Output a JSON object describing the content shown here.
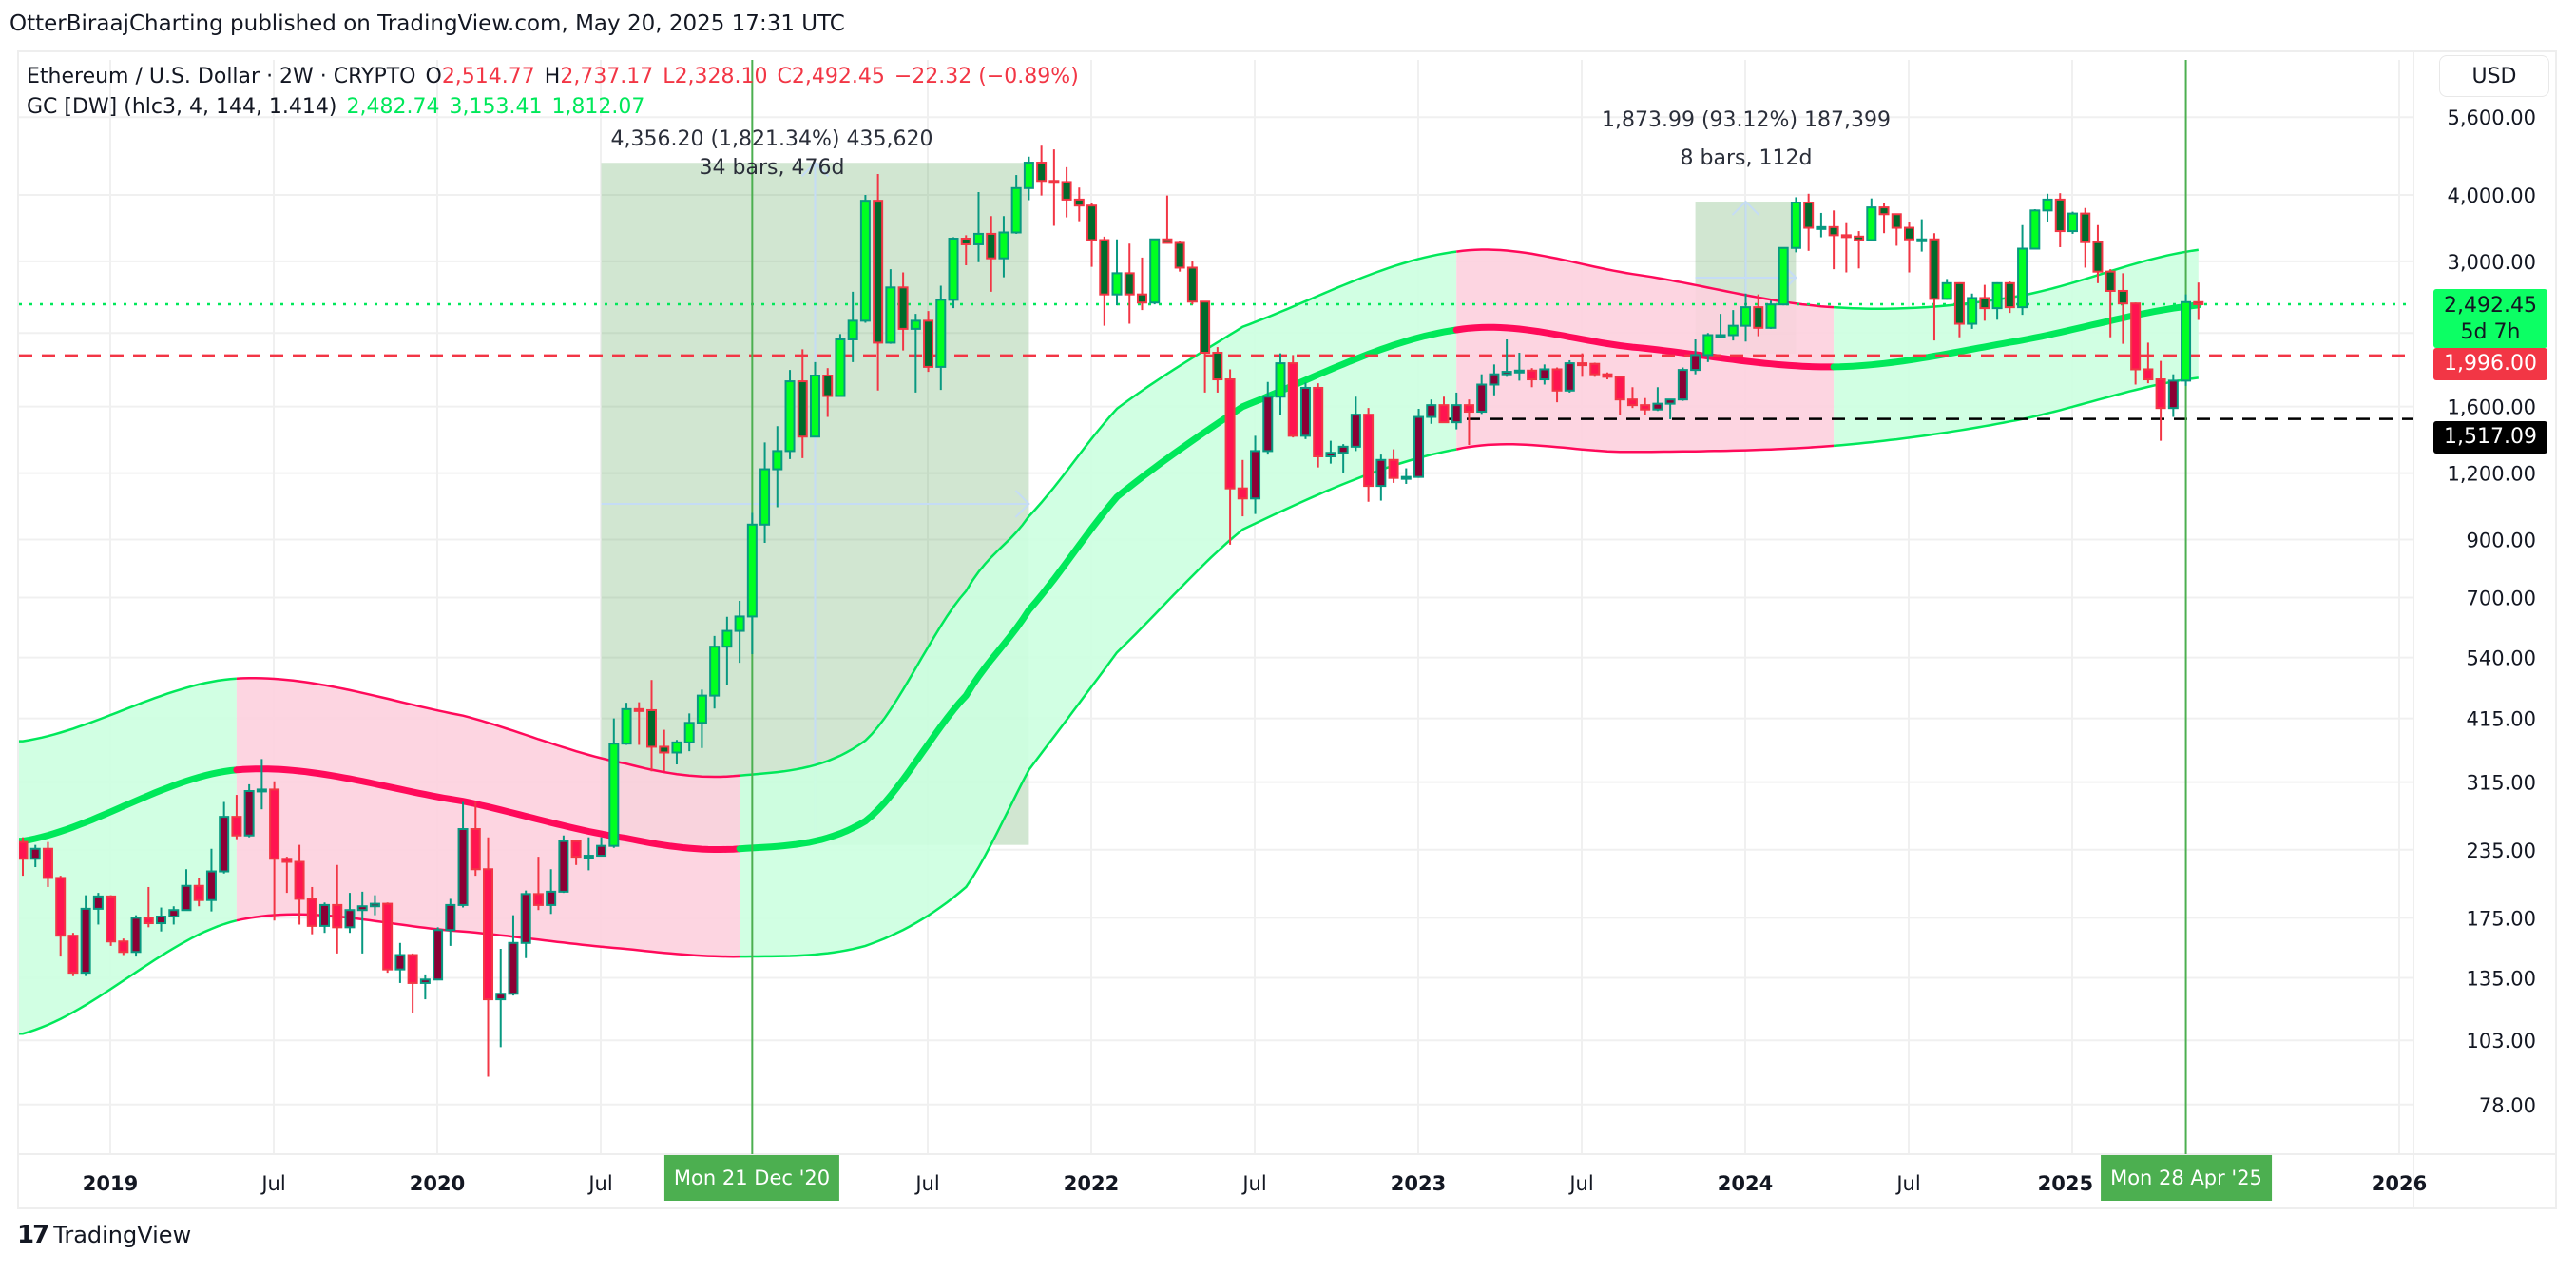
{
  "header": {
    "published": "OtterBiraajCharting published on TradingView.com, May 20, 2025 17:31 UTC"
  },
  "legend": {
    "symbol": "Ethereum / U.S. Dollar · 2W · CRYPTO",
    "open_label": "O",
    "open": "2,514.77",
    "high_label": "H",
    "high": "2,737.17",
    "low_label": "L",
    "low": "2,328.10",
    "close_label": "C",
    "close": "2,492.45",
    "change": "−22.32 (−0.89%)",
    "indicator": "GC [DW] (hlc3, 4, 144, 1.414)",
    "ind_center": "2,482.74",
    "ind_upper": "3,153.41",
    "ind_lower": "1,812.07"
  },
  "measures": [
    {
      "line1": "4,356.20 (1,821.34%) 435,620",
      "line2": "34 bars, 476d"
    },
    {
      "line1": "1,873.99 (93.12%) 187,399",
      "line2": "8 bars, 112d"
    }
  ],
  "price_axis": {
    "currency_button": "USD",
    "last_price": "2,492.45",
    "countdown": "5d 7h",
    "line_red": "1,996.00",
    "line_black": "1,517.09"
  },
  "time_axis": {
    "cursor_dates": [
      "Mon 21 Dec '20",
      "Mon 28 Apr '25"
    ]
  },
  "footer": {
    "logo_text": "TradingView",
    "logo_mark": "17"
  },
  "colors": {
    "up_border": "#089981",
    "down_border": "#f23645",
    "up_above": "#00ff22",
    "down_above": "#006b2c",
    "up_below": "#8b0035",
    "down_below": "#ff1450",
    "band_green": "#00e85a",
    "band_pink": "#ff0a5a",
    "band_green_fill": "#ccffe0",
    "band_pink_fill": "#fdd0de",
    "measure_fill": "#d1e8d1",
    "cursor_line": "#4caf50"
  },
  "chart_data": {
    "type": "candlestick",
    "interval": "2W",
    "y_scale": "log",
    "grid": true,
    "ylim": [
      70,
      6000
    ],
    "y_ticks": [
      {
        "value": 5600,
        "label": "5,600.00"
      },
      {
        "value": 4000,
        "label": "4,000.00"
      },
      {
        "value": 3000,
        "label": "3,000.00"
      },
      {
        "value": 2200,
        "label": ""
      },
      {
        "value": 1600,
        "label": "1,600.00"
      },
      {
        "value": 1200,
        "label": "1,200.00"
      },
      {
        "value": 900,
        "label": "900.00"
      },
      {
        "value": 700,
        "label": "700.00"
      },
      {
        "value": 540,
        "label": "540.00"
      },
      {
        "value": 415,
        "label": "415.00"
      },
      {
        "value": 315,
        "label": "315.00"
      },
      {
        "value": 235,
        "label": "235.00"
      },
      {
        "value": 175,
        "label": "175.00"
      },
      {
        "value": 135,
        "label": "135.00"
      },
      {
        "value": 103,
        "label": "103.00"
      },
      {
        "value": 78,
        "label": "78.00"
      }
    ],
    "x_ticks": [
      {
        "date": 2019.0,
        "label": "2019",
        "year": true
      },
      {
        "date": 2019.5,
        "label": "Jul",
        "year": false
      },
      {
        "date": 2020.0,
        "label": "2020",
        "year": true
      },
      {
        "date": 2020.5,
        "label": "Jul",
        "year": false
      },
      {
        "date": 2021.5,
        "label": "Jul",
        "year": false
      },
      {
        "date": 2022.0,
        "label": "2022",
        "year": true
      },
      {
        "date": 2022.5,
        "label": "Jul",
        "year": false
      },
      {
        "date": 2023.0,
        "label": "2023",
        "year": true
      },
      {
        "date": 2023.5,
        "label": "Jul",
        "year": false
      },
      {
        "date": 2024.0,
        "label": "2024",
        "year": true
      },
      {
        "date": 2024.5,
        "label": "Jul",
        "year": false
      },
      {
        "date": 2025.0,
        "label": "2025",
        "year": true
      },
      {
        "date": 2026.0,
        "label": "2026",
        "year": true
      }
    ],
    "candles_ohlc": [
      [
        243,
        248,
        210,
        226
      ],
      [
        226,
        240,
        218,
        236
      ],
      [
        236,
        243,
        200,
        208
      ],
      [
        208,
        210,
        148,
        162
      ],
      [
        162,
        164,
        136,
        138
      ],
      [
        138,
        193,
        136,
        182
      ],
      [
        182,
        195,
        170,
        192
      ],
      [
        192,
        193,
        155,
        158
      ],
      [
        158,
        160,
        149,
        151
      ],
      [
        151,
        177,
        148,
        175
      ],
      [
        175,
        200,
        168,
        171
      ],
      [
        171,
        183,
        165,
        176
      ],
      [
        176,
        184,
        170,
        181
      ],
      [
        181,
        216,
        181,
        201
      ],
      [
        201,
        208,
        184,
        189
      ],
      [
        189,
        236,
        180,
        214
      ],
      [
        214,
        289,
        212,
        271
      ],
      [
        271,
        298,
        246,
        250
      ],
      [
        250,
        312,
        248,
        303
      ],
      [
        303,
        348,
        280,
        305
      ],
      [
        305,
        316,
        173,
        226
      ],
      [
        226,
        228,
        195,
        223
      ],
      [
        223,
        240,
        170,
        190
      ],
      [
        190,
        200,
        163,
        169
      ],
      [
        169,
        187,
        164,
        185
      ],
      [
        185,
        220,
        150,
        168
      ],
      [
        168,
        195,
        164,
        181
      ],
      [
        181,
        196,
        150,
        184
      ],
      [
        184,
        193,
        177,
        186
      ],
      [
        186,
        187,
        138,
        140
      ],
      [
        140,
        157,
        132,
        149
      ],
      [
        149,
        150,
        116,
        132
      ],
      [
        132,
        137,
        123,
        134
      ],
      [
        134,
        168,
        134,
        166
      ],
      [
        166,
        190,
        155,
        185
      ],
      [
        185,
        289,
        183,
        257
      ],
      [
        257,
        289,
        210,
        216
      ],
      [
        216,
        248,
        88,
        123
      ],
      [
        123,
        153,
        100,
        126
      ],
      [
        126,
        177,
        125,
        157
      ],
      [
        157,
        197,
        147,
        194
      ],
      [
        194,
        228,
        181,
        185
      ],
      [
        185,
        216,
        178,
        196
      ],
      [
        196,
        250,
        195,
        244
      ],
      [
        244,
        245,
        220,
        228
      ],
      [
        228,
        248,
        215,
        229
      ],
      [
        229,
        248,
        229,
        239
      ],
      [
        239,
        415,
        237,
        372
      ],
      [
        372,
        444,
        370,
        432
      ],
      [
        432,
        445,
        370,
        430
      ],
      [
        430,
        490,
        330,
        367
      ],
      [
        367,
        395,
        330,
        358
      ],
      [
        358,
        378,
        340,
        374
      ],
      [
        374,
        424,
        360,
        407
      ],
      [
        407,
        470,
        365,
        458
      ],
      [
        458,
        593,
        433,
        566
      ],
      [
        566,
        644,
        480,
        606
      ],
      [
        606,
        690,
        528,
        645
      ],
      [
        645,
        1010,
        548,
        960
      ],
      [
        960,
        1370,
        887,
        1220
      ],
      [
        1220,
        1470,
        1035,
        1320
      ],
      [
        1320,
        1875,
        1275,
        1785
      ],
      [
        1785,
        2050,
        1280,
        1405
      ],
      [
        1405,
        1940,
        1405,
        1830
      ],
      [
        1830,
        1890,
        1530,
        1675
      ],
      [
        1675,
        2190,
        1670,
        2140
      ],
      [
        2140,
        2630,
        1940,
        2320
      ],
      [
        2320,
        4000,
        2300,
        3900
      ],
      [
        3900,
        4380,
        1715,
        2110
      ],
      [
        2110,
        2900,
        2100,
        2680
      ],
      [
        2680,
        2860,
        2040,
        2240
      ],
      [
        2240,
        2390,
        1700,
        2320
      ],
      [
        2320,
        2420,
        1860,
        1900
      ],
      [
        1900,
        2700,
        1720,
        2540
      ],
      [
        2540,
        3330,
        2450,
        3310
      ],
      [
        3310,
        3360,
        2950,
        3230
      ],
      [
        3230,
        4050,
        2990,
        3380
      ],
      [
        3380,
        3650,
        2630,
        3040
      ],
      [
        3040,
        3650,
        2800,
        3400
      ],
      [
        3400,
        4360,
        3380,
        4120
      ],
      [
        4120,
        4720,
        3910,
        4600
      ],
      [
        4600,
        4950,
        3990,
        4250
      ],
      [
        4250,
        4870,
        3500,
        4230
      ],
      [
        4230,
        4510,
        3630,
        3920
      ],
      [
        3920,
        4130,
        3570,
        3820
      ],
      [
        3820,
        3860,
        2930,
        3290
      ],
      [
        3290,
        3340,
        2270,
        2600
      ],
      [
        2600,
        3300,
        2480,
        2850
      ],
      [
        2850,
        3240,
        2290,
        2600
      ],
      [
        2600,
        3050,
        2430,
        2510
      ],
      [
        2510,
        3300,
        2490,
        3300
      ],
      [
        3300,
        3990,
        3240,
        3250
      ],
      [
        3250,
        3270,
        2870,
        2920
      ],
      [
        2920,
        3000,
        2490,
        2520
      ],
      [
        2520,
        2520,
        1700,
        2020
      ],
      [
        2020,
        2070,
        1700,
        1800
      ],
      [
        1800,
        1880,
        880,
        1123
      ],
      [
        1123,
        1270,
        995,
        1075
      ],
      [
        1075,
        1410,
        1005,
        1320
      ],
      [
        1320,
        1780,
        1300,
        1670
      ],
      [
        1670,
        2015,
        1545,
        1930
      ],
      [
        1930,
        2000,
        1400,
        1410
      ],
      [
        1410,
        1775,
        1390,
        1735
      ],
      [
        1735,
        1770,
        1230,
        1290
      ],
      [
        1290,
        1380,
        1250,
        1310
      ],
      [
        1310,
        1360,
        1200,
        1345
      ],
      [
        1345,
        1670,
        1320,
        1545
      ],
      [
        1545,
        1590,
        1060,
        1135
      ],
      [
        1135,
        1300,
        1065,
        1270
      ],
      [
        1270,
        1330,
        1150,
        1175
      ],
      [
        1175,
        1225,
        1145,
        1180
      ],
      [
        1180,
        1585,
        1175,
        1530
      ],
      [
        1530,
        1650,
        1485,
        1610
      ],
      [
        1610,
        1670,
        1490,
        1495
      ],
      [
        1495,
        1700,
        1450,
        1610
      ],
      [
        1610,
        1650,
        1355,
        1565
      ],
      [
        1565,
        1840,
        1550,
        1760
      ],
      [
        1760,
        1920,
        1680,
        1840
      ],
      [
        1840,
        2140,
        1820,
        1860
      ],
      [
        1860,
        2020,
        1790,
        1870
      ],
      [
        1870,
        1890,
        1740,
        1800
      ],
      [
        1800,
        1920,
        1760,
        1880
      ],
      [
        1880,
        1895,
        1630,
        1715
      ],
      [
        1715,
        1955,
        1700,
        1930
      ],
      [
        1930,
        2015,
        1820,
        1925
      ],
      [
        1925,
        1935,
        1820,
        1840
      ],
      [
        1840,
        1855,
        1800,
        1820
      ],
      [
        1820,
        1830,
        1540,
        1650
      ],
      [
        1650,
        1740,
        1590,
        1610
      ],
      [
        1610,
        1660,
        1540,
        1580
      ],
      [
        1580,
        1740,
        1570,
        1620
      ],
      [
        1620,
        1650,
        1515,
        1650
      ],
      [
        1650,
        1895,
        1640,
        1875
      ],
      [
        1875,
        2140,
        1840,
        2000
      ],
      [
        2000,
        2200,
        1940,
        2180
      ],
      [
        2180,
        2390,
        2160,
        2180
      ],
      [
        2180,
        2430,
        2130,
        2270
      ],
      [
        2270,
        2610,
        2120,
        2460
      ],
      [
        2460,
        2600,
        2170,
        2250
      ],
      [
        2250,
        2530,
        2240,
        2490
      ],
      [
        2490,
        3180,
        2480,
        3180
      ],
      [
        3180,
        3960,
        3120,
        3870
      ],
      [
        3870,
        4020,
        3140,
        3470
      ],
      [
        3470,
        3700,
        3330,
        3480
      ],
      [
        3480,
        3740,
        2900,
        3360
      ],
      [
        3360,
        3540,
        2860,
        3340
      ],
      [
        3340,
        3420,
        2910,
        3290
      ],
      [
        3290,
        3940,
        3280,
        3790
      ],
      [
        3790,
        3870,
        3390,
        3680
      ],
      [
        3680,
        3690,
        3210,
        3470
      ],
      [
        3470,
        3560,
        2860,
        3300
      ],
      [
        3300,
        3600,
        3130,
        3300
      ],
      [
        3300,
        3390,
        2130,
        2550
      ],
      [
        2550,
        2780,
        2540,
        2730
      ],
      [
        2730,
        2740,
        2160,
        2290
      ],
      [
        2290,
        2610,
        2240,
        2560
      ],
      [
        2560,
        2710,
        2320,
        2450
      ],
      [
        2450,
        2740,
        2330,
        2730
      ],
      [
        2730,
        2750,
        2400,
        2460
      ],
      [
        2460,
        3510,
        2380,
        3170
      ],
      [
        3170,
        3760,
        3160,
        3740
      ],
      [
        3740,
        4020,
        3560,
        3920
      ],
      [
        3920,
        4030,
        3190,
        3420
      ],
      [
        3420,
        3720,
        3380,
        3690
      ],
      [
        3690,
        3780,
        2920,
        3260
      ],
      [
        3260,
        3510,
        2730,
        2870
      ],
      [
        2870,
        2900,
        2160,
        2640
      ],
      [
        2640,
        2850,
        2100,
        2500
      ],
      [
        2500,
        2510,
        1760,
        1880
      ],
      [
        1880,
        2110,
        1770,
        1800
      ],
      [
        1800,
        1950,
        1380,
        1590
      ],
      [
        1590,
        1840,
        1530,
        1790
      ],
      [
        1790,
        2600,
        1750,
        2514.77
      ],
      [
        2514.77,
        2737.17,
        2328.1,
        2492.45
      ]
    ],
    "gc_band": {
      "columns": [
        "bar",
        "center",
        "upper",
        "lower"
      ],
      "points": [
        [
          0,
          244,
          376,
          106
        ],
        [
          17,
          332,
          493,
          173
        ],
        [
          35,
          290,
          420,
          165
        ],
        [
          48,
          247,
          341,
          153
        ],
        [
          57,
          236,
          324,
          148
        ],
        [
          67,
          266,
          377,
          155
        ],
        [
          75,
          458,
          720,
          200
        ],
        [
          80,
          663,
          995,
          332
        ],
        [
          87,
          1082,
          1585,
          552
        ],
        [
          97,
          1600,
          2260,
          940
        ],
        [
          114,
          2230,
          3130,
          1330
        ],
        [
          128,
          2070,
          2840,
          1315
        ],
        [
          144,
          1900,
          2460,
          1350
        ],
        [
          158,
          2113,
          2565,
          1500
        ],
        [
          173,
          2483,
          3153,
          1812
        ]
      ],
      "trend_segments": [
        {
          "from_bar": 0,
          "to_bar": 17,
          "trend": "up"
        },
        {
          "from_bar": 17,
          "to_bar": 57,
          "trend": "down"
        },
        {
          "from_bar": 57,
          "to_bar": 114,
          "trend": "up"
        },
        {
          "from_bar": 114,
          "to_bar": 144,
          "trend": "down"
        },
        {
          "from_bar": 144,
          "to_bar": 173,
          "trend": "up"
        }
      ]
    },
    "price_lines": [
      {
        "value": 2492.45,
        "style": "dotted",
        "color": "#00e85a"
      },
      {
        "value": 1996.0,
        "style": "dashed",
        "color": "#f23645"
      },
      {
        "value": 1517.09,
        "style": "dashed",
        "color": "#000000",
        "from_bar": 113
      }
    ],
    "measure_boxes": [
      {
        "from_bar": 46,
        "to_bar": 80,
        "low": 240,
        "high": 4596
      },
      {
        "from_bar": 133,
        "to_bar": 141,
        "low": 2012,
        "high": 3886
      }
    ],
    "cursor_bars": [
      58,
      172
    ]
  }
}
